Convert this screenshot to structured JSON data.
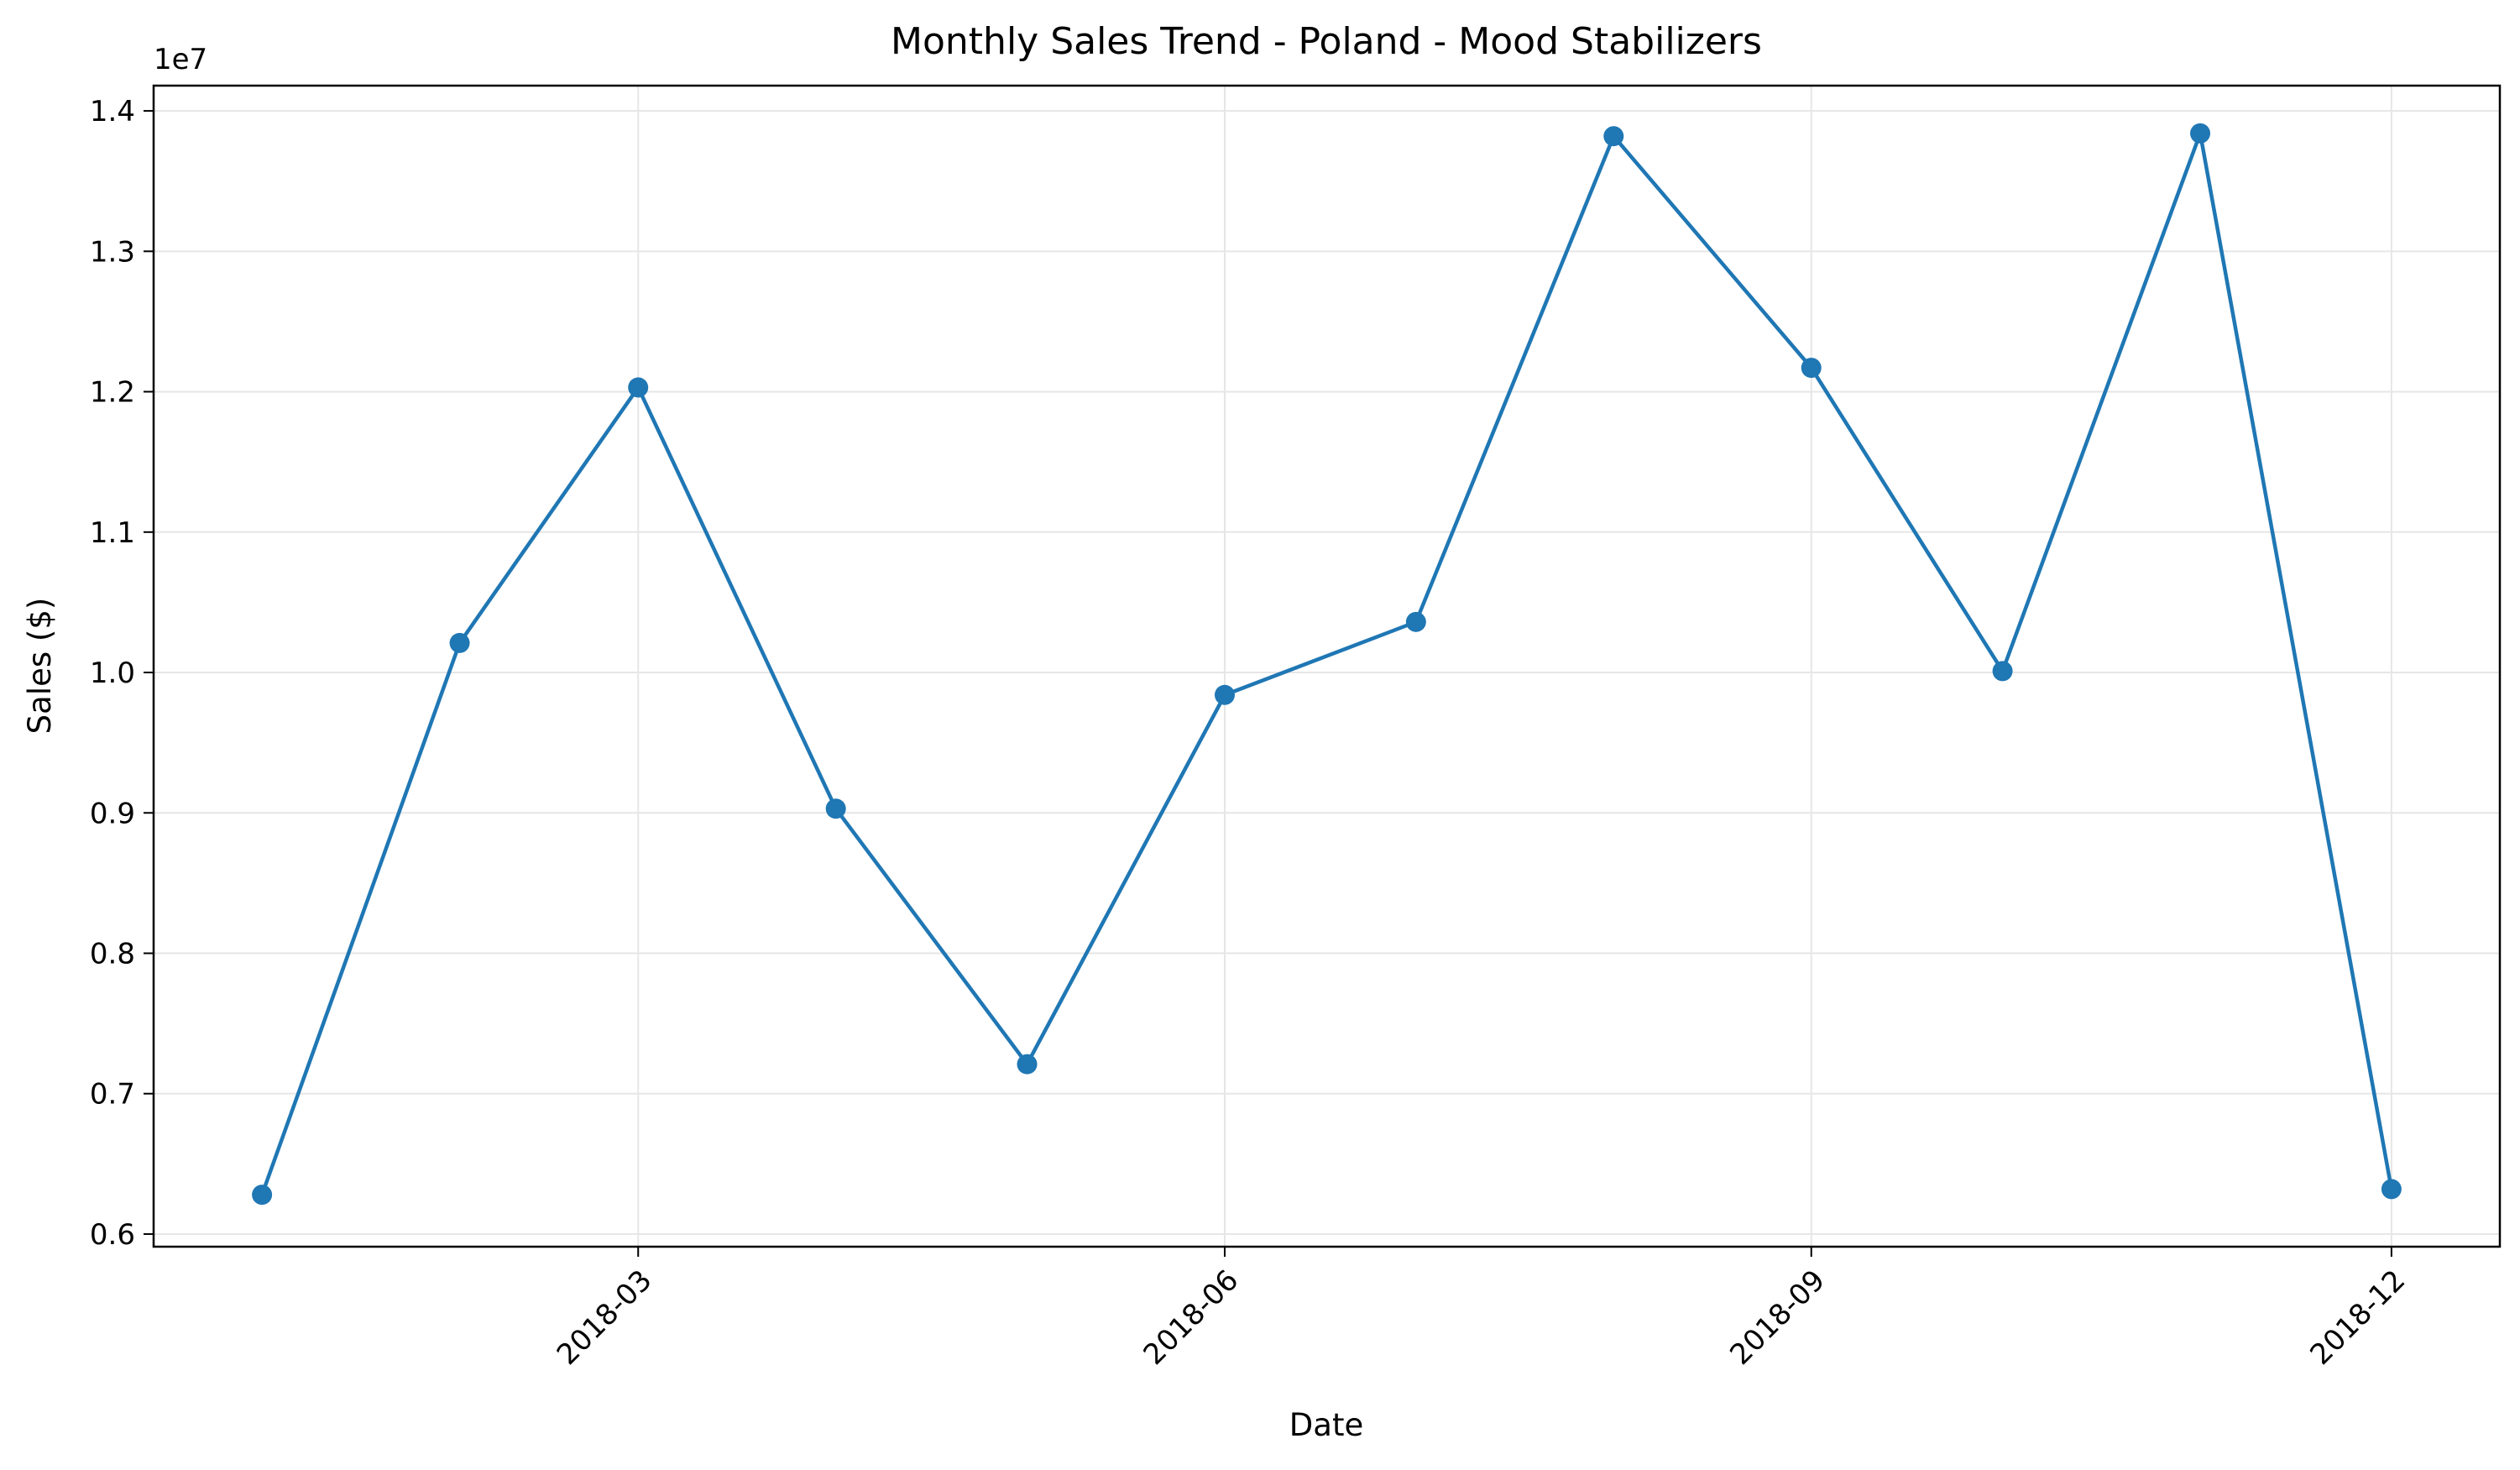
{
  "chart_data": {
    "type": "line",
    "title": "Monthly Sales Trend - Poland - Mood Stabilizers",
    "xlabel": "Date",
    "ylabel": "Sales ($)",
    "y_offset_label": "1e7",
    "x": [
      "2018-01-01",
      "2018-02-01",
      "2018-03-01",
      "2018-04-01",
      "2018-05-01",
      "2018-06-01",
      "2018-07-01",
      "2018-08-01",
      "2018-09-01",
      "2018-10-01",
      "2018-11-01",
      "2018-12-01"
    ],
    "series": [
      {
        "values": [
          6280000,
          10210000,
          12030000,
          9030000,
          7210000,
          9840000,
          10360000,
          13820000,
          12170000,
          10010000,
          13840000,
          6320000
        ],
        "color": "#1f77b4",
        "marker": "circle"
      }
    ],
    "x_ticks": [
      "2018-03",
      "2018-06",
      "2018-09",
      "2018-12"
    ],
    "x_tick_dates": [
      "2018-03-01",
      "2018-06-01",
      "2018-09-01",
      "2018-12-01"
    ],
    "x_range": [
      "2017-12-15",
      "2018-12-18"
    ],
    "y_ticks": [
      6000000,
      7000000,
      8000000,
      9000000,
      10000000,
      11000000,
      12000000,
      13000000,
      14000000
    ],
    "y_tick_labels": [
      "0.6",
      "0.7",
      "0.8",
      "0.9",
      "1.0",
      "1.1",
      "1.2",
      "1.3",
      "1.4"
    ],
    "ylim": [
      5910000,
      14180000
    ],
    "grid": true,
    "legend": "none"
  }
}
